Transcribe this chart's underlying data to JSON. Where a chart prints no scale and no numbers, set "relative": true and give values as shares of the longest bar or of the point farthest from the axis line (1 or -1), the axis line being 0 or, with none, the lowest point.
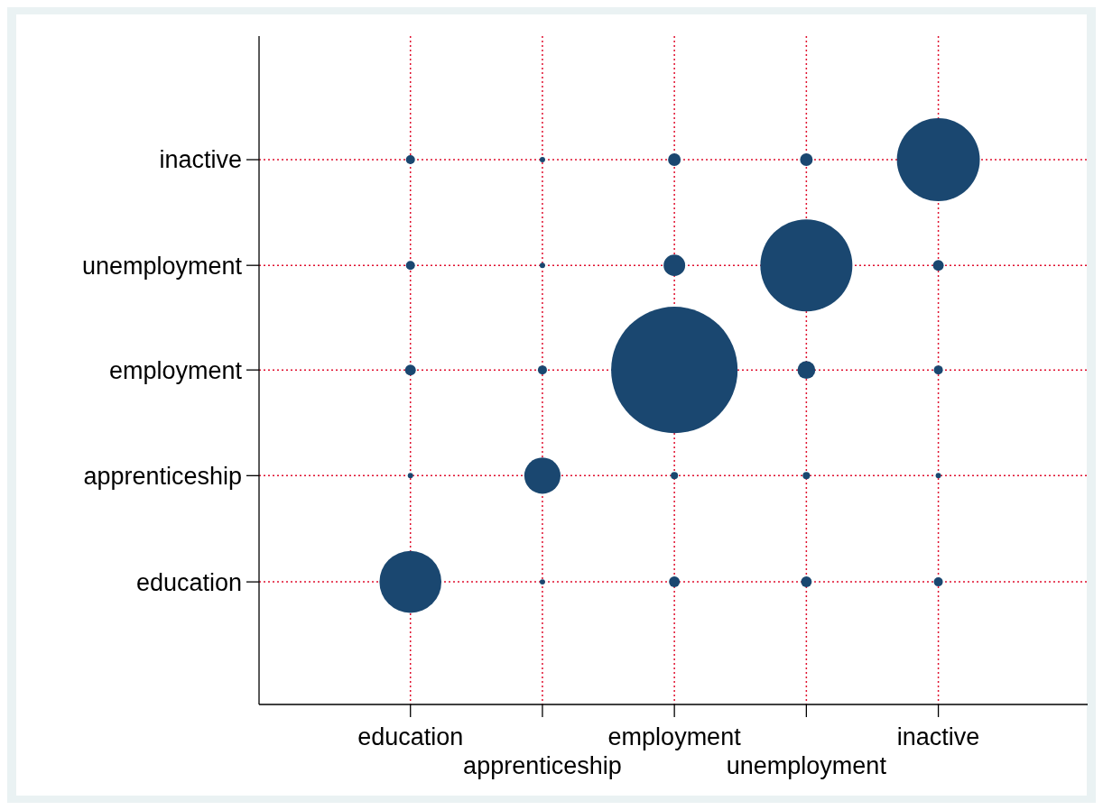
{
  "chart_data": {
    "type": "bubble",
    "marker": "circle",
    "grid": true,
    "relative": true,
    "categories": [
      "education",
      "apprenticeship",
      "employment",
      "unemployment",
      "inactive"
    ],
    "annotations": [
      "education",
      "apprenticeship",
      "employment",
      "unemployment",
      "inactive"
    ],
    "series": [
      {
        "color": "#1a4770",
        "x": [
          "education",
          "apprenticeship",
          "employment",
          "unemployment",
          "inactive",
          "education",
          "apprenticeship",
          "employment",
          "unemployment",
          "inactive",
          "education",
          "apprenticeship",
          "employment",
          "unemployment",
          "inactive",
          "education",
          "apprenticeship",
          "employment",
          "unemployment",
          "inactive",
          "education",
          "apprenticeship",
          "employment",
          "unemployment",
          "inactive"
        ],
        "values": [
          0.225,
          0.225,
          0.225,
          0.225,
          0.225,
          0.42,
          0.42,
          0.42,
          0.42,
          0.42,
          0.614,
          0.614,
          0.614,
          0.614,
          0.614,
          0.806,
          0.806,
          0.806,
          0.806,
          0.806,
          1,
          1,
          1,
          1,
          1
        ],
        "sizes": [
          0.24,
          0.0018,
          0.0073,
          0.0073,
          0.0051,
          0.0018,
          0.082,
          0.0033,
          0.0033,
          0.0018,
          0.0073,
          0.0051,
          1,
          0.02,
          0.0051,
          0.0051,
          0.0018,
          0.029,
          0.53,
          0.0073,
          0.0051,
          0.0018,
          0.01,
          0.01,
          0.43
        ]
      }
    ]
  }
}
